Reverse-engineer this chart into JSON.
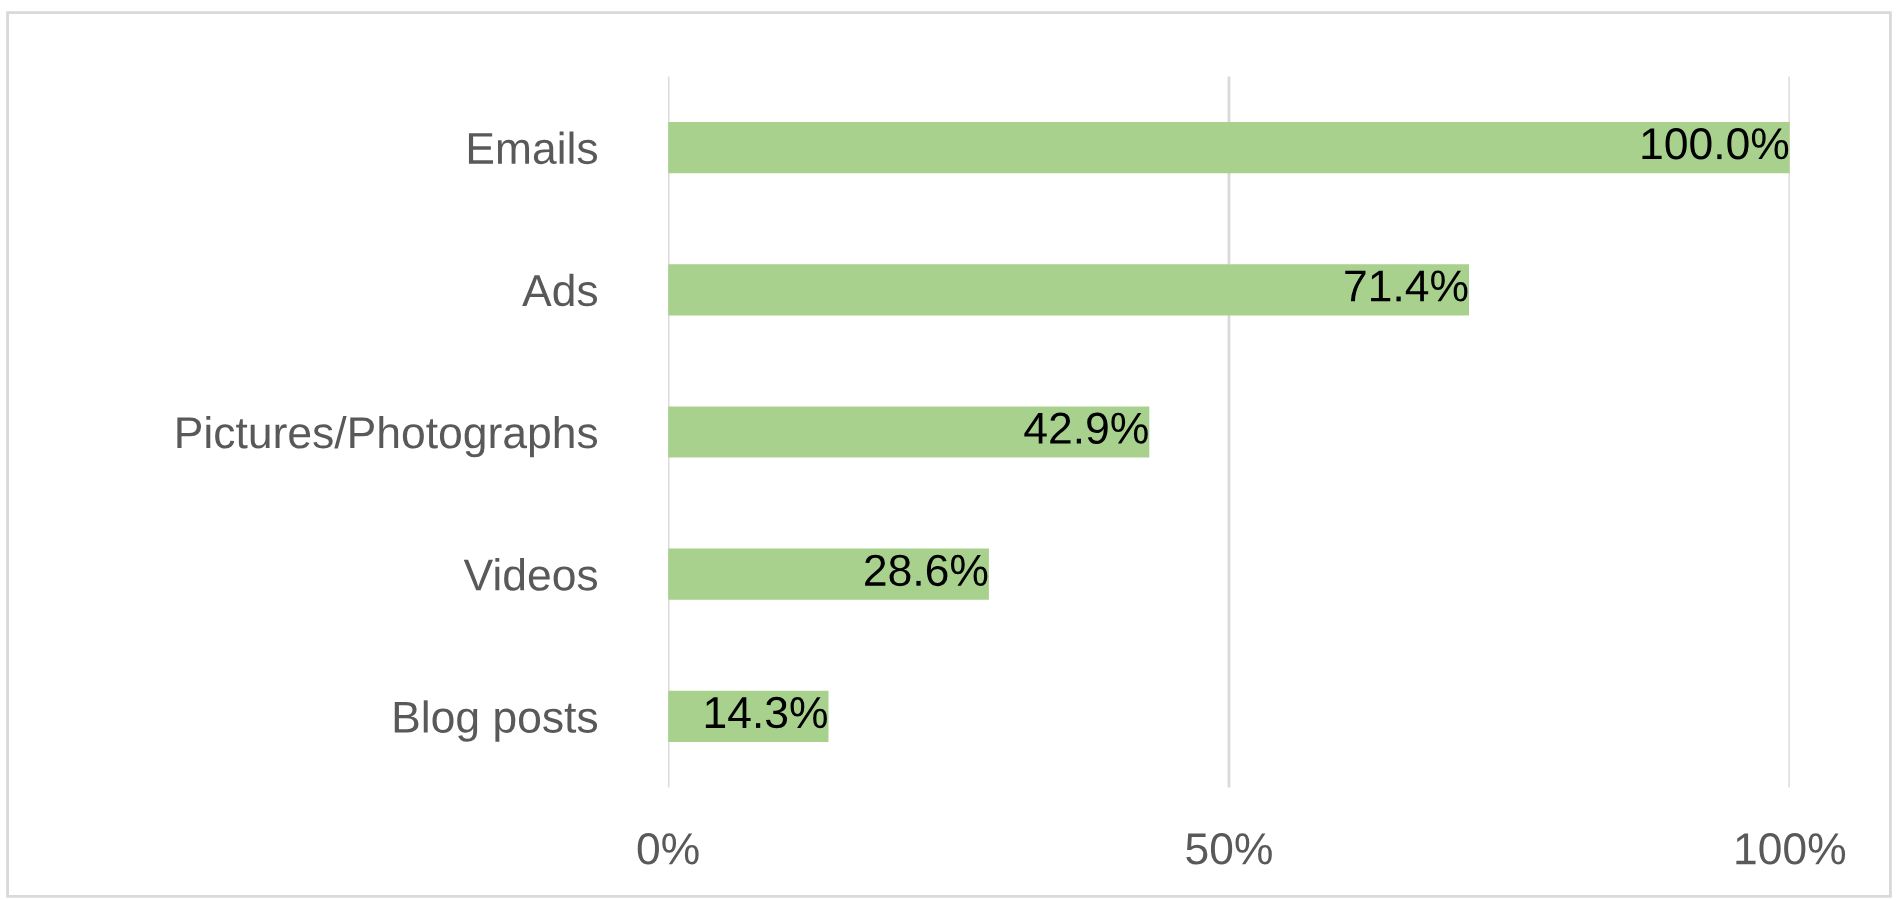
{
  "chart_data": {
    "type": "bar",
    "orientation": "horizontal",
    "categories": [
      "Emails",
      "Ads",
      "Pictures/Photographs",
      "Videos",
      "Blog posts"
    ],
    "values": [
      100.0,
      71.4,
      42.9,
      28.6,
      14.3
    ],
    "value_labels": [
      "100.0%",
      "71.4%",
      "42.9%",
      "28.6%",
      "14.3%"
    ],
    "color": "#a9d18e",
    "xlim": [
      0,
      100
    ],
    "xticks": [
      {
        "value": 0,
        "label": "0%"
      },
      {
        "value": 50,
        "label": "50%"
      },
      {
        "value": 100,
        "label": "100%"
      }
    ],
    "grid": "x",
    "legend": false
  }
}
